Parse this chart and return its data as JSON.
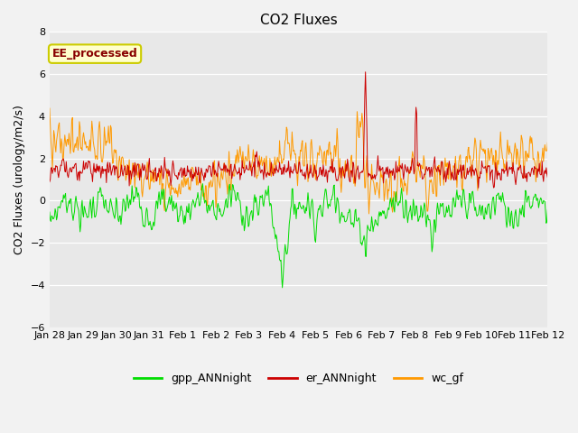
{
  "title": "CO2 Fluxes",
  "ylabel": "CO2 Fluxes (urology/m2/s)",
  "ylim": [
    -6,
    8
  ],
  "yticks": [
    -6,
    -4,
    -2,
    0,
    2,
    4,
    6,
    8
  ],
  "annotation": "EE_processed",
  "bg_color": "#e8e8e8",
  "line_colors": {
    "gpp": "#00dd00",
    "er": "#cc0000",
    "wc": "#ff9900"
  },
  "legend": [
    "gpp_ANNnight",
    "er_ANNnight",
    "wc_gf"
  ],
  "xtick_labels": [
    "Jan 28",
    "Jan 29",
    "Jan 30",
    "Jan 31",
    "Feb 1",
    "Feb 2",
    "Feb 3",
    "Feb 4",
    "Feb 5",
    "Feb 6",
    "Feb 7",
    "Feb 8",
    "Feb 9",
    "Feb 10",
    "Feb 11",
    "Feb 12"
  ],
  "n_days": 15,
  "n_points": 720
}
